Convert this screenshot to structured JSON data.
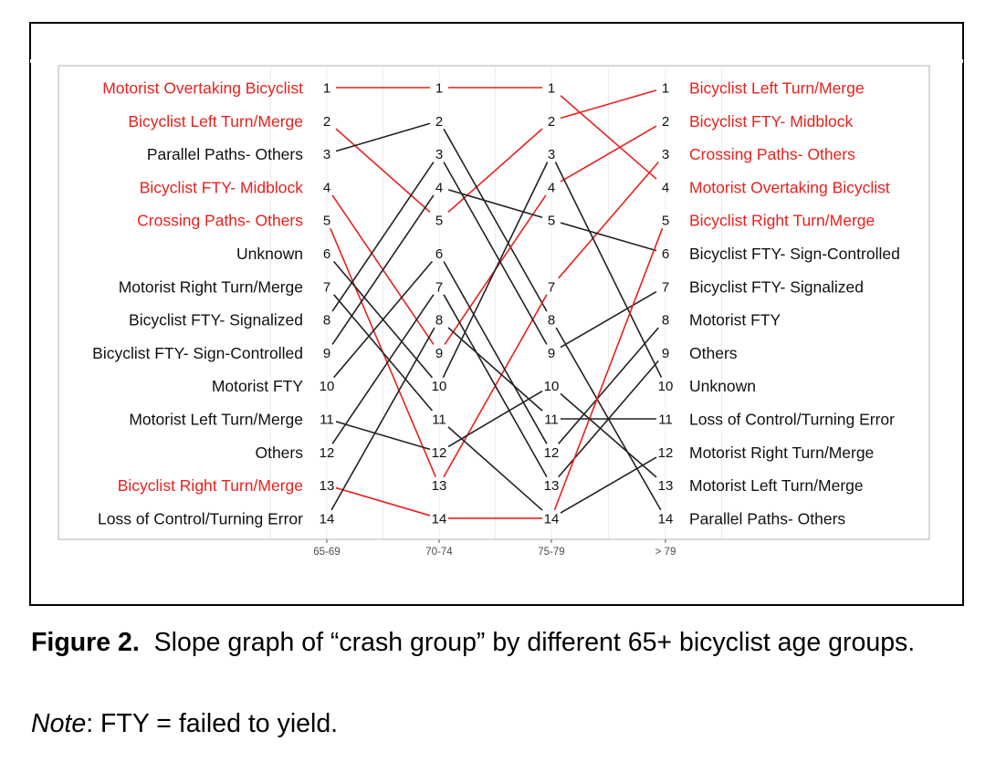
{
  "chart_data": {
    "type": "slope",
    "categories": [
      "65-69",
      "70-74",
      "75-79",
      "> 79"
    ],
    "groups": [
      {
        "name": "Motorist Overtaking Bicyclist",
        "ranks": [
          1,
          1,
          1,
          4
        ],
        "color": "#e8211d"
      },
      {
        "name": "Bicyclist Left Turn/Merge",
        "ranks": [
          2,
          5,
          2,
          1
        ],
        "color": "#e8211d"
      },
      {
        "name": "Parallel Paths- Others",
        "ranks": [
          3,
          2,
          8,
          14
        ],
        "color": "#222222"
      },
      {
        "name": "Bicyclist FTY- Midblock",
        "ranks": [
          4,
          9,
          4,
          2
        ],
        "color": "#e8211d"
      },
      {
        "name": "Crossing Paths- Others",
        "ranks": [
          5,
          13,
          7,
          3
        ],
        "color": "#e8211d"
      },
      {
        "name": "Unknown",
        "ranks": [
          6,
          10,
          3,
          10
        ],
        "color": "#222222"
      },
      {
        "name": "Motorist Right Turn/Merge",
        "ranks": [
          7,
          11,
          14,
          12
        ],
        "color": "#222222"
      },
      {
        "name": "Bicyclist FTY- Signalized",
        "ranks": [
          8,
          3,
          9,
          7
        ],
        "color": "#222222"
      },
      {
        "name": "Bicyclist FTY- Sign-Controlled",
        "ranks": [
          9,
          4,
          5,
          6
        ],
        "color": "#222222"
      },
      {
        "name": "Motorist FTY",
        "ranks": [
          10,
          6,
          12,
          8
        ],
        "color": "#222222"
      },
      {
        "name": "Motorist Left Turn/Merge",
        "ranks": [
          11,
          12,
          10,
          13
        ],
        "color": "#222222"
      },
      {
        "name": "Others",
        "ranks": [
          12,
          7,
          13,
          9
        ],
        "color": "#222222"
      },
      {
        "name": "Bicyclist Right Turn/Merge",
        "ranks": [
          13,
          14,
          14,
          5
        ],
        "color": "#e8211d"
      },
      {
        "name": "Loss of Control/Turning Error",
        "ranks": [
          14,
          8,
          11,
          11
        ],
        "color": "#222222"
      }
    ],
    "ylim": [
      1,
      14
    ],
    "grid": true,
    "title": "",
    "xlabel": "",
    "ylabel": ""
  },
  "caption": {
    "label": "Figure 2.",
    "text": "Slope graph of “crash group” by different 65+  bicyclist age groups.",
    "note_label": "Note",
    "note_text": ": FTY = failed to yield."
  }
}
